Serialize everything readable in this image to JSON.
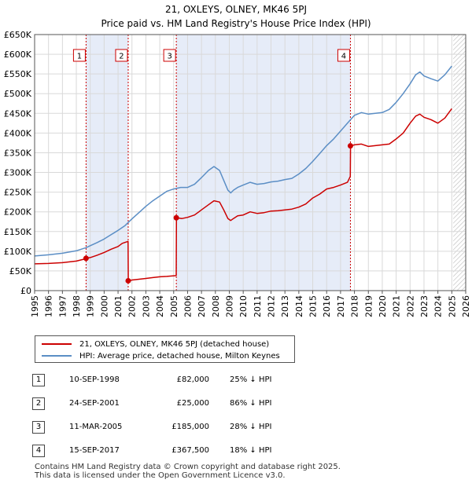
{
  "chart_data": {
    "type": "line",
    "title": "21, OXLEYS, OLNEY, MK46 5PJ",
    "subtitle": "Price paid vs. HM Land Registry's House Price Index (HPI)",
    "xlabel": "",
    "ylabel": "",
    "xlim": [
      1995,
      2026
    ],
    "ylim": [
      0,
      650000
    ],
    "x_ticks": [
      1995,
      1996,
      1997,
      1998,
      1999,
      2000,
      2001,
      2002,
      2003,
      2004,
      2005,
      2006,
      2007,
      2008,
      2009,
      2010,
      2011,
      2012,
      2013,
      2014,
      2015,
      2016,
      2017,
      2018,
      2019,
      2020,
      2021,
      2022,
      2023,
      2024,
      2025,
      2026
    ],
    "y_ticks": [
      {
        "value": 0,
        "label": "£0"
      },
      {
        "value": 50000,
        "label": "£50K"
      },
      {
        "value": 100000,
        "label": "£100K"
      },
      {
        "value": 150000,
        "label": "£150K"
      },
      {
        "value": 200000,
        "label": "£200K"
      },
      {
        "value": 250000,
        "label": "£250K"
      },
      {
        "value": 300000,
        "label": "£300K"
      },
      {
        "value": 350000,
        "label": "£350K"
      },
      {
        "value": 400000,
        "label": "£400K"
      },
      {
        "value": 450000,
        "label": "£450K"
      },
      {
        "value": 500000,
        "label": "£500K"
      },
      {
        "value": 550000,
        "label": "£550K"
      },
      {
        "value": 600000,
        "label": "£600K"
      },
      {
        "value": 650000,
        "label": "£650K"
      }
    ],
    "grid": true,
    "shaded_ranges": [
      [
        1998.7,
        2001.73
      ],
      [
        2005.19,
        2017.71
      ]
    ],
    "future_hatch_start": 2025.1,
    "series": [
      {
        "name": "21, OXLEYS, OLNEY, MK46 5PJ (detached house)",
        "color": "#cc0000",
        "x": [
          1995,
          1996,
          1997,
          1998.0,
          1998.69,
          1998.71,
          1999.0,
          1999.5,
          2000.0,
          2000.5,
          2001.0,
          2001.3,
          2001.72,
          2001.74,
          2002.0,
          2002.5,
          2003.0,
          2003.5,
          2004.0,
          2004.5,
          2005.18,
          2005.2,
          2005.6,
          2006.0,
          2006.5,
          2007.0,
          2007.5,
          2007.9,
          2008.3,
          2008.6,
          2008.9,
          2009.1,
          2009.3,
          2009.6,
          2010.0,
          2010.5,
          2011.0,
          2011.5,
          2012.0,
          2012.5,
          2013.0,
          2013.5,
          2014.0,
          2014.5,
          2015.0,
          2015.5,
          2016.0,
          2016.5,
          2017.0,
          2017.5,
          2017.7,
          2017.72,
          2018.0,
          2018.5,
          2019.0,
          2019.5,
          2020.0,
          2020.5,
          2021.0,
          2021.5,
          2022.0,
          2022.4,
          2022.7,
          2023.0,
          2023.5,
          2024.0,
          2024.5,
          2025.0
        ],
        "values": [
          68000,
          69000,
          71000,
          75000,
          81000,
          82000,
          84000,
          90000,
          97000,
          105000,
          112000,
          120000,
          125000,
          25000,
          27000,
          29000,
          31000,
          33000,
          35000,
          36000,
          38000,
          185000,
          183000,
          186000,
          192000,
          205000,
          218000,
          228000,
          225000,
          205000,
          183000,
          178000,
          183000,
          190000,
          192000,
          200000,
          196000,
          198000,
          202000,
          203000,
          205000,
          207000,
          212000,
          220000,
          235000,
          245000,
          258000,
          262000,
          268000,
          275000,
          290000,
          367500,
          370000,
          372000,
          366000,
          368000,
          370000,
          372000,
          385000,
          400000,
          425000,
          443000,
          448000,
          440000,
          434000,
          425000,
          438000,
          462000
        ]
      },
      {
        "name": "HPI: Average price, detached house, Milton Keynes",
        "color": "#5b8ec5",
        "x": [
          1995,
          1996,
          1997,
          1998.0,
          1998.7,
          1999.0,
          1999.5,
          2000.0,
          2000.5,
          2001.0,
          2001.5,
          2002.0,
          2002.5,
          2003.0,
          2003.5,
          2004.0,
          2004.5,
          2005.0,
          2005.5,
          2006.0,
          2006.5,
          2007.0,
          2007.5,
          2007.9,
          2008.3,
          2008.6,
          2008.9,
          2009.1,
          2009.3,
          2009.6,
          2010.0,
          2010.5,
          2011.0,
          2011.5,
          2012.0,
          2012.5,
          2013.0,
          2013.5,
          2014.0,
          2014.5,
          2015.0,
          2015.5,
          2016.0,
          2016.5,
          2017.0,
          2017.5,
          2018.0,
          2018.5,
          2019.0,
          2019.5,
          2020.0,
          2020.5,
          2021.0,
          2021.5,
          2022.0,
          2022.4,
          2022.7,
          2023.0,
          2023.5,
          2024.0,
          2024.5,
          2025.0
        ],
        "values": [
          88000,
          91000,
          95000,
          101000,
          109000,
          114000,
          122000,
          131000,
          142000,
          153000,
          165000,
          182000,
          198000,
          214000,
          228000,
          240000,
          252000,
          258000,
          262000,
          262000,
          270000,
          287000,
          305000,
          315000,
          305000,
          280000,
          255000,
          248000,
          255000,
          262000,
          268000,
          275000,
          270000,
          272000,
          276000,
          278000,
          282000,
          285000,
          296000,
          310000,
          328000,
          348000,
          368000,
          385000,
          405000,
          425000,
          445000,
          452000,
          448000,
          450000,
          452000,
          460000,
          478000,
          500000,
          525000,
          548000,
          555000,
          545000,
          538000,
          532000,
          548000,
          570000
        ]
      }
    ],
    "sale_markers": [
      {
        "label": "1",
        "x": 1998.7,
        "value": 82000
      },
      {
        "label": "2",
        "x": 2001.73,
        "value": 25000
      },
      {
        "label": "3",
        "x": 2005.19,
        "value": 185000
      },
      {
        "label": "4",
        "x": 2017.71,
        "value": 367500
      }
    ],
    "legend_position": "below"
  },
  "legend": {
    "items": [
      {
        "label": "21, OXLEYS, OLNEY, MK46 5PJ (detached house)",
        "color": "#cc0000"
      },
      {
        "label": "HPI: Average price, detached house, Milton Keynes",
        "color": "#5b8ec5"
      }
    ]
  },
  "sales": [
    {
      "num": "1",
      "date": "10-SEP-1998",
      "price": "£82,000",
      "hpi": "25% ↓ HPI"
    },
    {
      "num": "2",
      "date": "24-SEP-2001",
      "price": "£25,000",
      "hpi": "86% ↓ HPI"
    },
    {
      "num": "3",
      "date": "11-MAR-2005",
      "price": "£185,000",
      "hpi": "28% ↓ HPI"
    },
    {
      "num": "4",
      "date": "15-SEP-2017",
      "price": "£367,500",
      "hpi": "18% ↓ HPI"
    }
  ],
  "footer": {
    "line1": "Contains HM Land Registry data © Crown copyright and database right 2025.",
    "line2": "This data is licensed under the Open Government Licence v3.0."
  }
}
